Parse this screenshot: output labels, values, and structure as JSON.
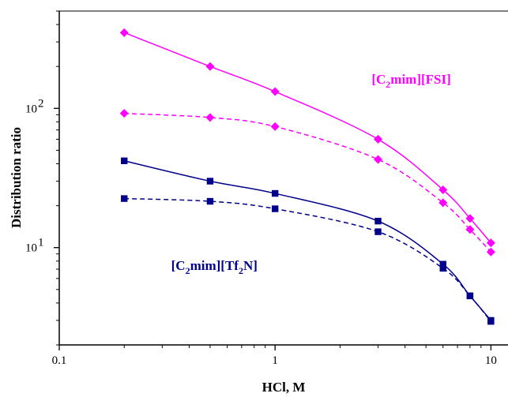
{
  "chart_data": {
    "type": "line",
    "xscale": "log",
    "yscale": "log",
    "xlim": [
      0.1,
      12
    ],
    "ylim": [
      2,
      500
    ],
    "xlabel": "HCl, M",
    "ylabel": "Distribution ratio",
    "x_ticks": [
      "0.1",
      "1",
      "10"
    ],
    "y_ticks": [
      {
        "value": 10,
        "label": "10",
        "exp": "1"
      },
      {
        "value": 100,
        "label": "10",
        "exp": "2"
      }
    ],
    "grid": false,
    "annotations": [
      {
        "id": "fsi",
        "parts": [
          "[C",
          "2",
          "mim][FSI]"
        ],
        "color": "#ff00ff",
        "x": 2.8,
        "y": 150
      },
      {
        "id": "tf2n",
        "parts": [
          "[C",
          "2",
          "mim][Tf",
          "2",
          "N]"
        ],
        "color": "#00008b",
        "x": 0.33,
        "y": 6.9
      }
    ],
    "series": [
      {
        "color": "#ff00ff",
        "marker": "diamond",
        "dash": "solid",
        "x": [
          0.2,
          0.5,
          1,
          3,
          6,
          8,
          10
        ],
        "y": [
          350,
          200,
          132,
          60,
          26,
          16.2,
          10.8
        ]
      },
      {
        "color": "#ff00ff",
        "marker": "diamond",
        "dash": "dashed",
        "x": [
          0.2,
          0.5,
          1,
          3,
          6,
          8,
          10
        ],
        "y": [
          92,
          86,
          74,
          43,
          21,
          13.5,
          9.3
        ]
      },
      {
        "color": "#00008b",
        "marker": "square",
        "dash": "solid",
        "x": [
          0.2,
          0.5,
          1,
          3,
          6,
          8,
          10
        ],
        "y": [
          42,
          30,
          24.5,
          15.5,
          7.6,
          4.5,
          3.0
        ]
      },
      {
        "color": "#00008b",
        "marker": "square",
        "dash": "dashed",
        "x": [
          0.2,
          0.5,
          1,
          3,
          6,
          8,
          10
        ],
        "y": [
          22.5,
          21.5,
          19,
          13,
          7.1,
          4.5,
          2.95
        ]
      }
    ]
  }
}
